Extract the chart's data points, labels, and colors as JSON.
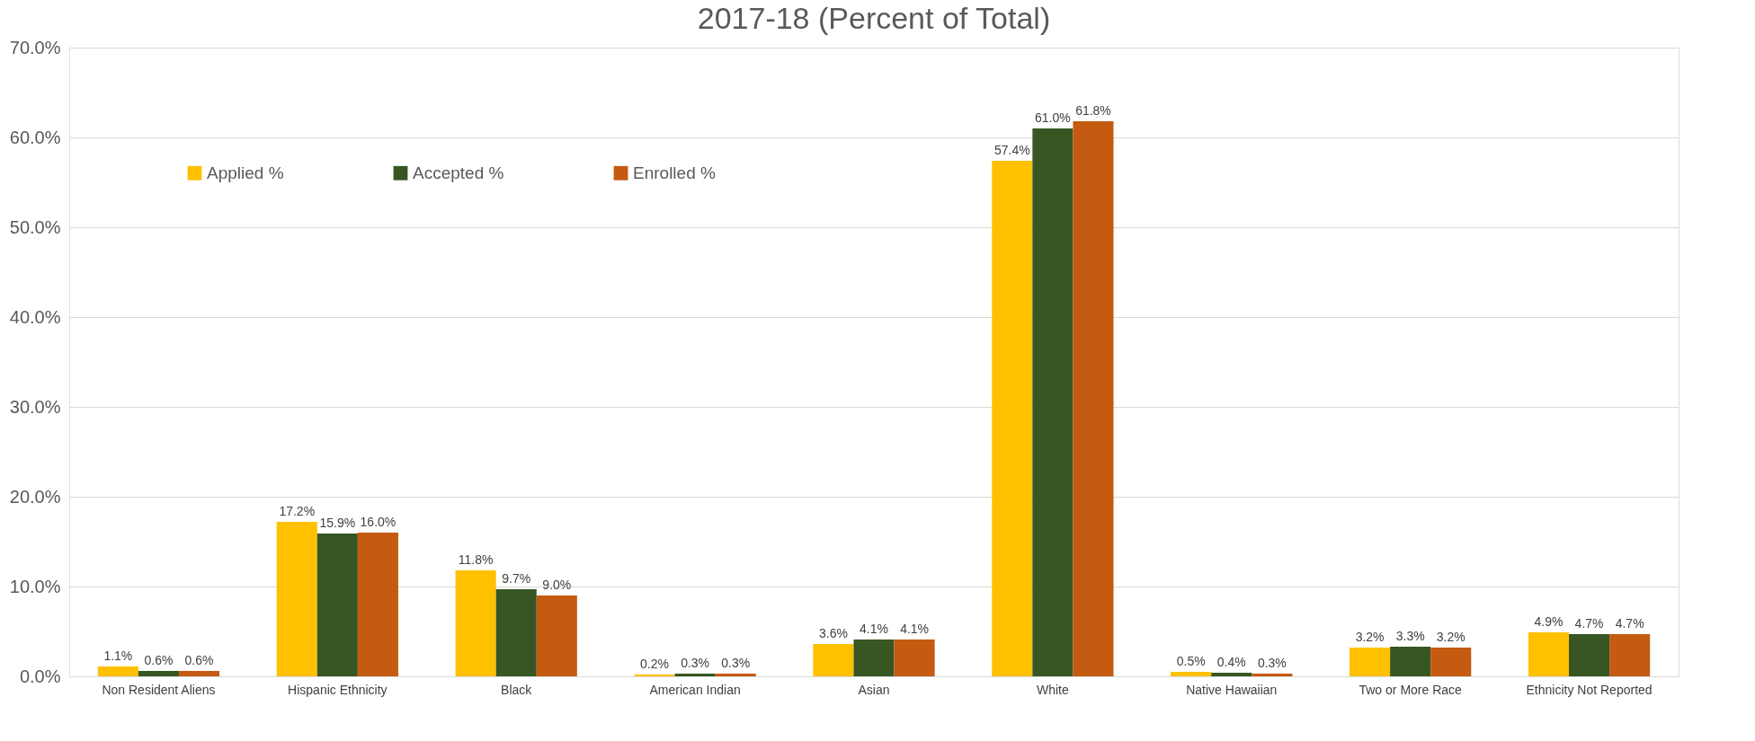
{
  "chart_data": {
    "type": "bar",
    "title": "2017-18 (Percent of Total)",
    "categories": [
      "Non Resident Aliens",
      "Hispanic Ethnicity",
      "Black",
      "American Indian",
      "Asian",
      "White",
      "Native Hawaiian",
      "Two or More Race",
      "Ethnicity Not Reported"
    ],
    "series": [
      {
        "name": "Applied %",
        "color": "#ffc000",
        "values": [
          1.1,
          17.2,
          11.8,
          0.2,
          3.6,
          57.4,
          0.5,
          3.2,
          4.9
        ],
        "value_labels": [
          "1.1%",
          "17.2%",
          "11.8%",
          "0.2%",
          "3.6%",
          "57.4%",
          "0.5%",
          "3.2%",
          "4.9%"
        ]
      },
      {
        "name": "Accepted %",
        "color": "#375623",
        "values": [
          0.6,
          15.9,
          9.7,
          0.3,
          4.1,
          61.0,
          0.4,
          3.3,
          4.7
        ],
        "value_labels": [
          "0.6%",
          "15.9%",
          "9.7%",
          "0.3%",
          "4.1%",
          "61.0%",
          "0.4%",
          "3.3%",
          "4.7%"
        ]
      },
      {
        "name": "Enrolled %",
        "color": "#c55a11",
        "values": [
          0.6,
          16.0,
          9.0,
          0.3,
          4.1,
          61.8,
          0.3,
          3.2,
          4.7
        ],
        "value_labels": [
          "0.6%",
          "16.0%",
          "9.0%",
          "0.3%",
          "4.1%",
          "61.8%",
          "0.3%",
          "3.2%",
          "4.7%"
        ]
      }
    ],
    "ylim": [
      0,
      70
    ],
    "yticks": [
      {
        "value": 0,
        "label": "0.0%"
      },
      {
        "value": 10,
        "label": "10.0%"
      },
      {
        "value": 20,
        "label": "20.0%"
      },
      {
        "value": 30,
        "label": "30.0%"
      },
      {
        "value": 40,
        "label": "40.0%"
      },
      {
        "value": 50,
        "label": "50.0%"
      },
      {
        "value": 60,
        "label": "60.0%"
      },
      {
        "value": 70,
        "label": "70.0%"
      }
    ],
    "grid": "y",
    "legend": "top left"
  }
}
